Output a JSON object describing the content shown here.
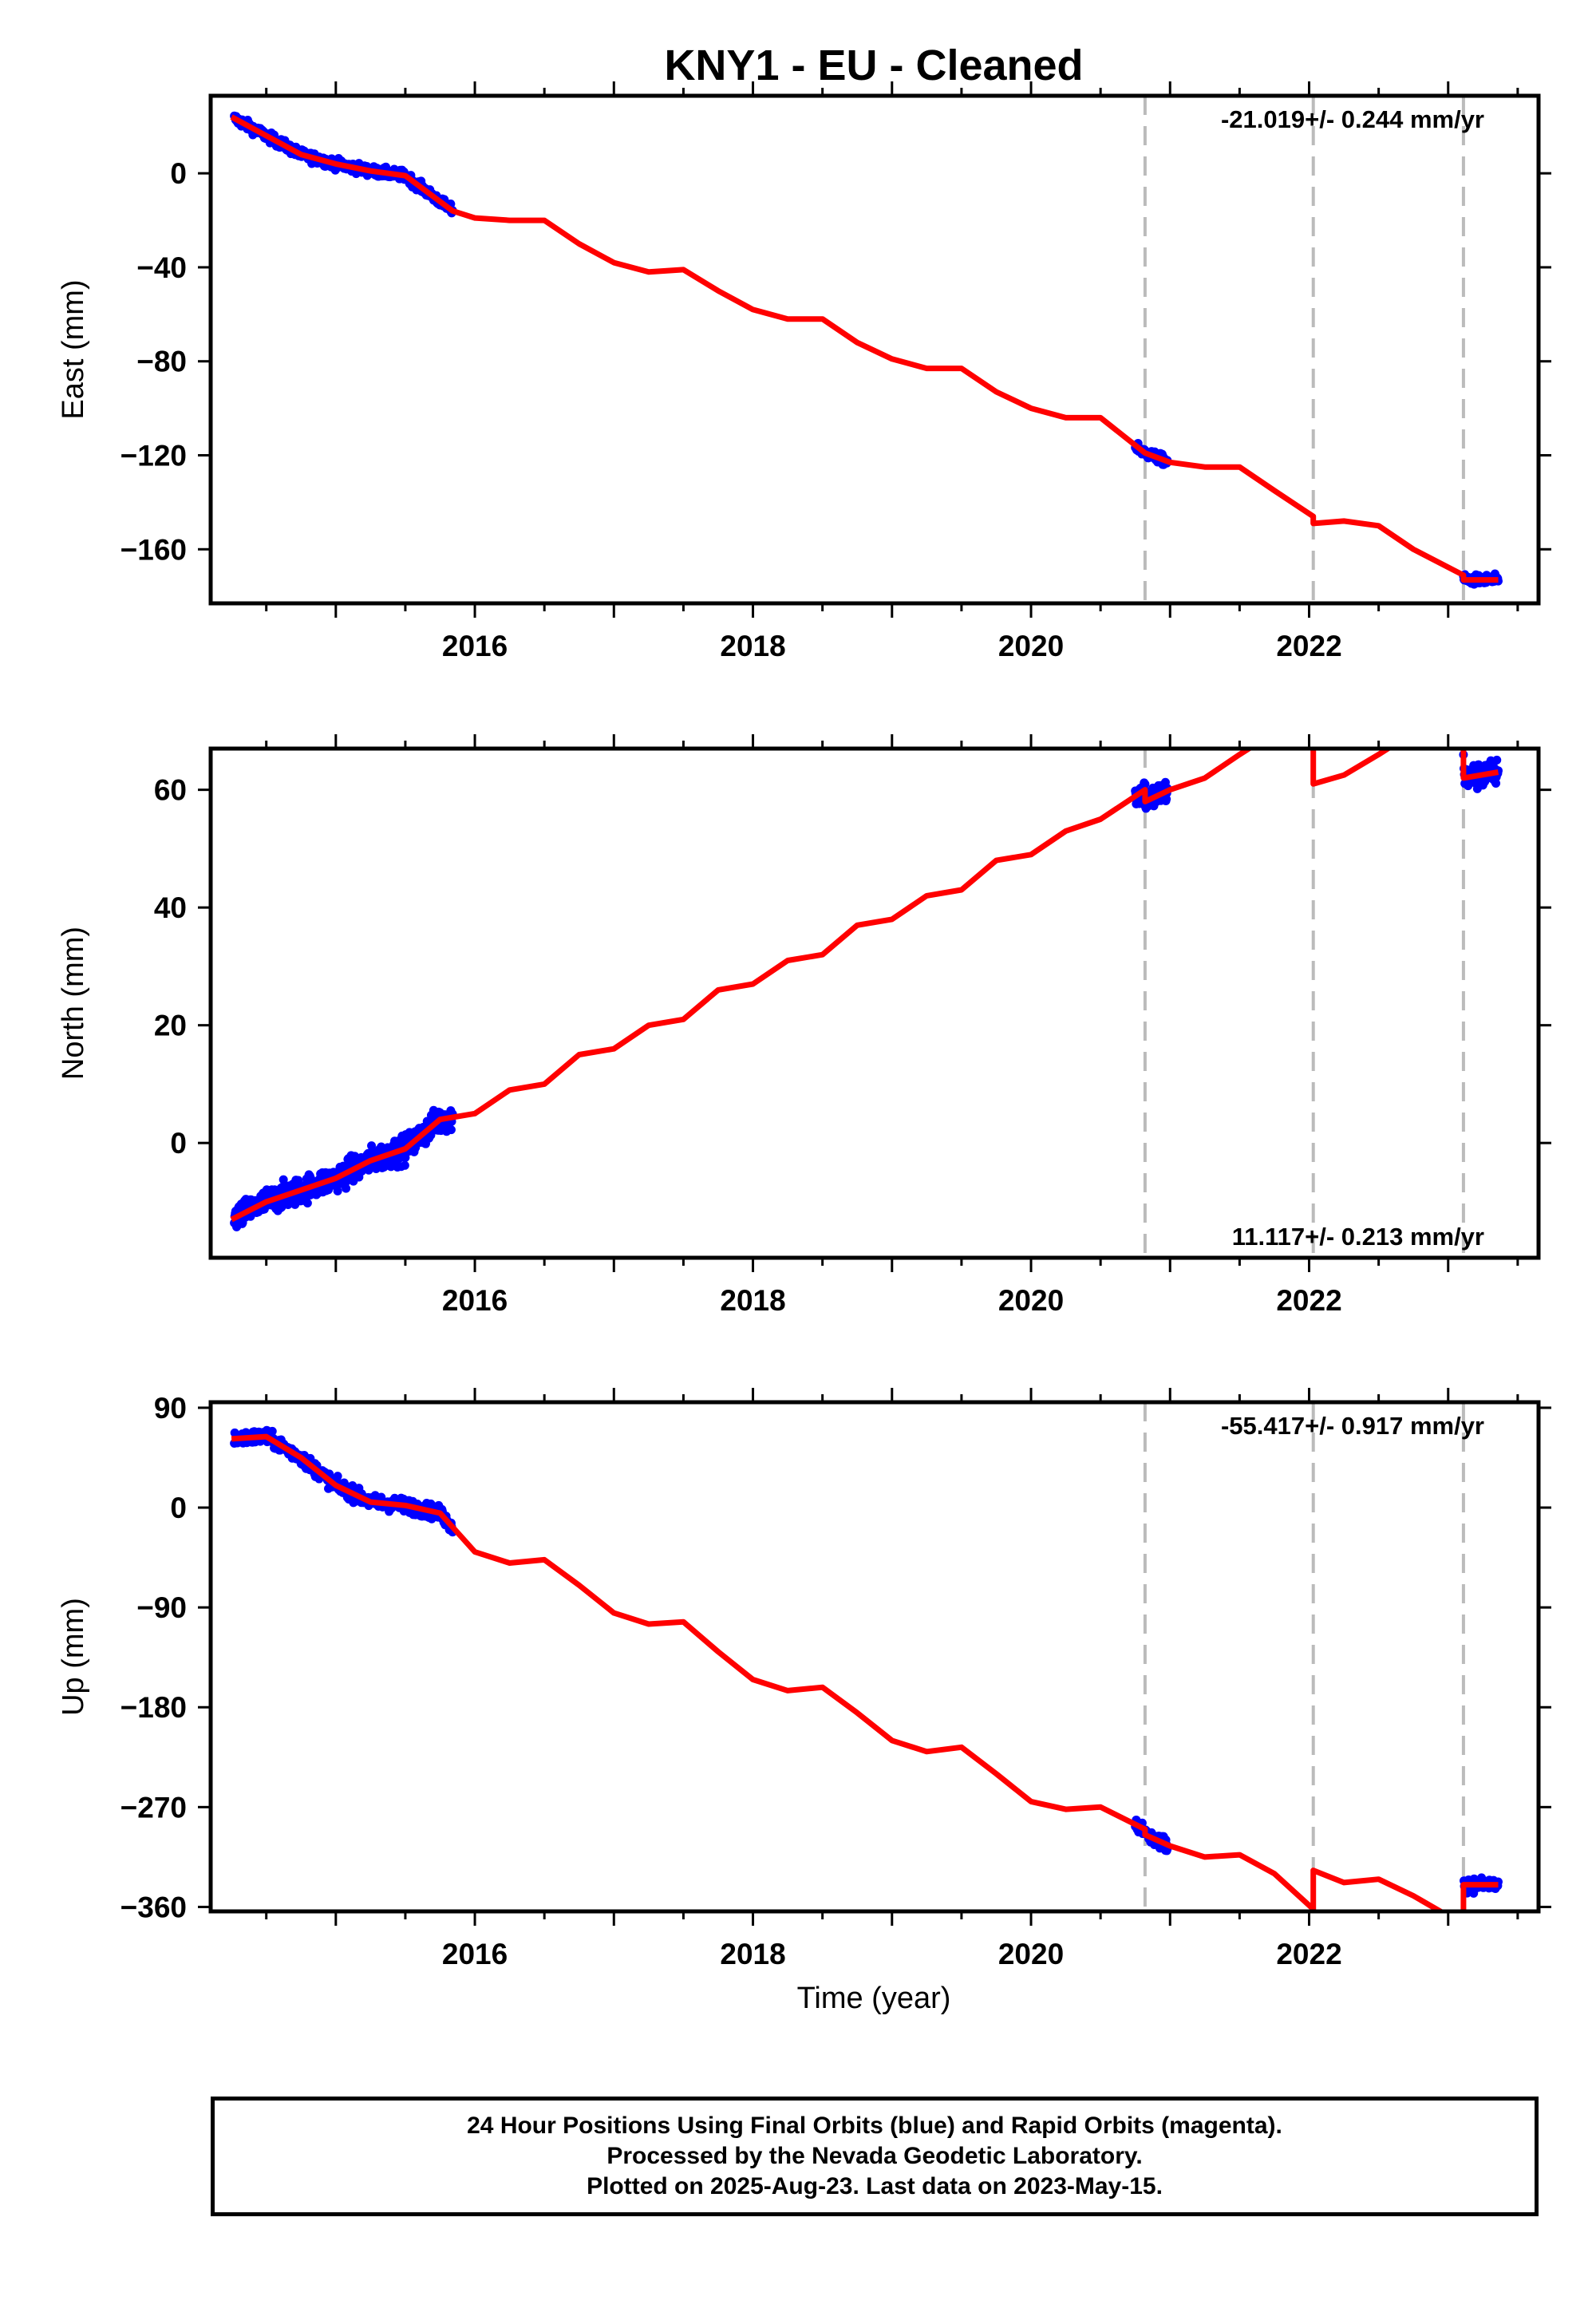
{
  "title": "KNY1  - EU - Cleaned",
  "xlabel": "Time (year)",
  "footer": {
    "line1": "24 Hour Positions Using Final Orbits (blue) and Rapid Orbits (magenta).",
    "line2": "Processed by the Nevada Geodetic Laboratory.",
    "line3": "Plotted on 2025-Aug-23. Last data on 2023-May-15."
  },
  "colors": {
    "data": "#0000ff",
    "model": "#ff0000",
    "steps": "#bbbbbb",
    "frame": "#000000"
  },
  "chart_data": [
    {
      "type": "scatter",
      "name": "East",
      "ylabel": "East (mm)",
      "rate_text": "-21.019+/- 0.244 mm/yr",
      "rate_position": "top-right",
      "xlim": [
        2014.1,
        2023.65
      ],
      "ylim": [
        -183,
        33
      ],
      "yticks": [
        0,
        -40,
        -80,
        -120,
        -160
      ],
      "xticks": [
        2016,
        2018,
        2020,
        2022
      ],
      "step_epochs": [
        2020.82,
        2022.03,
        2023.11
      ],
      "data_segments": [
        [
          2014.27,
          2015.84
        ],
        [
          2020.75,
          2020.98
        ],
        [
          2023.11,
          2023.36
        ]
      ],
      "noise": 1.5,
      "model": [
        [
          2014.25,
          24
        ],
        [
          2014.5,
          16
        ],
        [
          2014.75,
          8
        ],
        [
          2015.0,
          4
        ],
        [
          2015.25,
          1
        ],
        [
          2015.5,
          -1
        ],
        [
          2015.84,
          -16
        ],
        [
          2016.0,
          -19
        ],
        [
          2016.25,
          -20
        ],
        [
          2016.5,
          -20
        ],
        [
          2016.75,
          -30
        ],
        [
          2017.0,
          -38
        ],
        [
          2017.25,
          -42
        ],
        [
          2017.5,
          -41
        ],
        [
          2017.75,
          -50
        ],
        [
          2018.0,
          -58
        ],
        [
          2018.25,
          -62
        ],
        [
          2018.5,
          -62
        ],
        [
          2018.75,
          -72
        ],
        [
          2019.0,
          -79
        ],
        [
          2019.25,
          -83
        ],
        [
          2019.5,
          -83
        ],
        [
          2019.75,
          -93
        ],
        [
          2020.0,
          -100
        ],
        [
          2020.25,
          -104
        ],
        [
          2020.5,
          -104
        ],
        [
          2020.82,
          -119
        ],
        [
          2021.0,
          -123
        ],
        [
          2021.25,
          -125
        ],
        [
          2021.5,
          -125
        ],
        [
          2021.75,
          -135
        ],
        [
          2022.03,
          -146
        ],
        [
          2022.03,
          -149
        ],
        [
          2022.25,
          -148
        ],
        [
          2022.5,
          -150
        ],
        [
          2022.75,
          -160
        ],
        [
          2023.11,
          -171
        ],
        [
          2023.11,
          -173
        ],
        [
          2023.36,
          -173
        ]
      ]
    },
    {
      "type": "scatter",
      "name": "North",
      "ylabel": "North (mm)",
      "rate_text": "11.117+/- 0.213 mm/yr",
      "rate_position": "bottom-right",
      "xlim": [
        2014.1,
        2023.65
      ],
      "ylim": [
        -19.5,
        67
      ],
      "yticks": [
        0,
        20,
        40,
        60
      ],
      "xticks": [
        2016,
        2018,
        2020,
        2022
      ],
      "step_epochs": [
        2020.82,
        2022.03,
        2023.11
      ],
      "data_segments": [
        [
          2014.27,
          2015.84
        ],
        [
          2020.75,
          2020.98
        ],
        [
          2023.11,
          2023.36
        ]
      ],
      "noise": 1.6,
      "model": [
        [
          2014.25,
          -13
        ],
        [
          2014.5,
          -10
        ],
        [
          2014.75,
          -8
        ],
        [
          2015.0,
          -6
        ],
        [
          2015.25,
          -3
        ],
        [
          2015.5,
          -1
        ],
        [
          2015.75,
          4
        ],
        [
          2016.0,
          5
        ],
        [
          2016.25,
          9
        ],
        [
          2016.5,
          10
        ],
        [
          2016.75,
          15
        ],
        [
          2017.0,
          16
        ],
        [
          2017.25,
          20
        ],
        [
          2017.5,
          21
        ],
        [
          2017.75,
          26
        ],
        [
          2018.0,
          27
        ],
        [
          2018.25,
          31
        ],
        [
          2018.5,
          32
        ],
        [
          2018.75,
          37
        ],
        [
          2019.0,
          38
        ],
        [
          2019.25,
          42
        ],
        [
          2019.5,
          43
        ],
        [
          2019.75,
          48
        ],
        [
          2020.0,
          49
        ],
        [
          2020.25,
          53
        ],
        [
          2020.5,
          55
        ],
        [
          2020.82,
          60
        ],
        [
          2020.82,
          58
        ],
        [
          2021.0,
          60
        ],
        [
          2021.25,
          62
        ],
        [
          2021.5,
          66
        ],
        [
          2021.6,
          67.5
        ],
        [
          2022.03,
          67.5
        ],
        [
          2022.03,
          61
        ],
        [
          2022.25,
          62.5
        ],
        [
          2022.5,
          66
        ],
        [
          2022.6,
          67.5
        ],
        [
          2023.11,
          67.5
        ],
        [
          2023.11,
          62
        ],
        [
          2023.36,
          63
        ]
      ]
    },
    {
      "type": "scatter",
      "name": "Up",
      "ylabel": "Up (mm)",
      "rate_text": "-55.417+/- 0.917 mm/yr",
      "rate_position": "top-right",
      "xlim": [
        2014.1,
        2023.65
      ],
      "ylim": [
        -364,
        95
      ],
      "yticks": [
        90,
        0,
        -90,
        -180,
        -270,
        -360
      ],
      "xticks": [
        2016,
        2018,
        2020,
        2022
      ],
      "step_epochs": [
        2020.82,
        2022.03,
        2023.11
      ],
      "data_segments": [
        [
          2014.27,
          2015.84
        ],
        [
          2020.75,
          2020.98
        ],
        [
          2023.11,
          2023.36
        ]
      ],
      "noise": 4.5,
      "model": [
        [
          2014.25,
          62
        ],
        [
          2014.5,
          64
        ],
        [
          2014.75,
          45
        ],
        [
          2015.0,
          20
        ],
        [
          2015.25,
          5
        ],
        [
          2015.5,
          2
        ],
        [
          2015.75,
          -5
        ],
        [
          2016.0,
          -40
        ],
        [
          2016.25,
          -50
        ],
        [
          2016.5,
          -47
        ],
        [
          2016.75,
          -70
        ],
        [
          2017.0,
          -95
        ],
        [
          2017.25,
          -105
        ],
        [
          2017.5,
          -103
        ],
        [
          2017.75,
          -130
        ],
        [
          2018.0,
          -155
        ],
        [
          2018.25,
          -165
        ],
        [
          2018.5,
          -162
        ],
        [
          2018.75,
          -185
        ],
        [
          2019.0,
          -210
        ],
        [
          2019.25,
          -220
        ],
        [
          2019.5,
          -216
        ],
        [
          2019.75,
          -240
        ],
        [
          2020.0,
          -265
        ],
        [
          2020.25,
          -272
        ],
        [
          2020.5,
          -270
        ],
        [
          2020.82,
          -290
        ],
        [
          2020.82,
          -295
        ],
        [
          2021.0,
          -305
        ],
        [
          2021.25,
          -315
        ],
        [
          2021.5,
          -313
        ],
        [
          2021.75,
          -330
        ],
        [
          2022.03,
          -362
        ],
        [
          2022.03,
          -327
        ],
        [
          2022.25,
          -338
        ],
        [
          2022.5,
          -335
        ],
        [
          2022.75,
          -350
        ],
        [
          2023.0,
          -368
        ],
        [
          2023.11,
          -368
        ],
        [
          2023.11,
          -340
        ],
        [
          2023.36,
          -340
        ]
      ]
    }
  ]
}
